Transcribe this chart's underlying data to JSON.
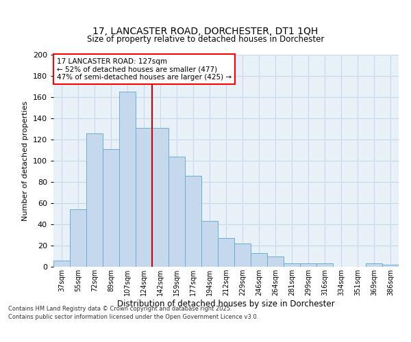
{
  "title_line1": "17, LANCASTER ROAD, DORCHESTER, DT1 1QH",
  "title_line2": "Size of property relative to detached houses in Dorchester",
  "xlabel": "Distribution of detached houses by size in Dorchester",
  "ylabel": "Number of detached properties",
  "categories": [
    "37sqm",
    "55sqm",
    "72sqm",
    "89sqm",
    "107sqm",
    "124sqm",
    "142sqm",
    "159sqm",
    "177sqm",
    "194sqm",
    "212sqm",
    "229sqm",
    "246sqm",
    "264sqm",
    "281sqm",
    "299sqm",
    "316sqm",
    "334sqm",
    "351sqm",
    "369sqm",
    "386sqm"
  ],
  "values": [
    6,
    54,
    126,
    111,
    165,
    131,
    131,
    104,
    86,
    43,
    27,
    22,
    13,
    10,
    3,
    3,
    3,
    0,
    0,
    3,
    2
  ],
  "bar_color": "#c5d8ec",
  "bar_edge_color": "#6baed6",
  "vline_color": "#cc0000",
  "vline_index": 5,
  "annotation_text": "17 LANCASTER ROAD: 127sqm\n← 52% of detached houses are smaller (477)\n47% of semi-detached houses are larger (425) →",
  "ylim": [
    0,
    200
  ],
  "yticks": [
    0,
    20,
    40,
    60,
    80,
    100,
    120,
    140,
    160,
    180,
    200
  ],
  "grid_color": "#c8d8e8",
  "bg_color": "#ffffff",
  "plot_bg_color": "#e8f0f8",
  "footer_line1": "Contains HM Land Registry data © Crown copyright and database right 2025.",
  "footer_line2": "Contains public sector information licensed under the Open Government Licence v3.0."
}
